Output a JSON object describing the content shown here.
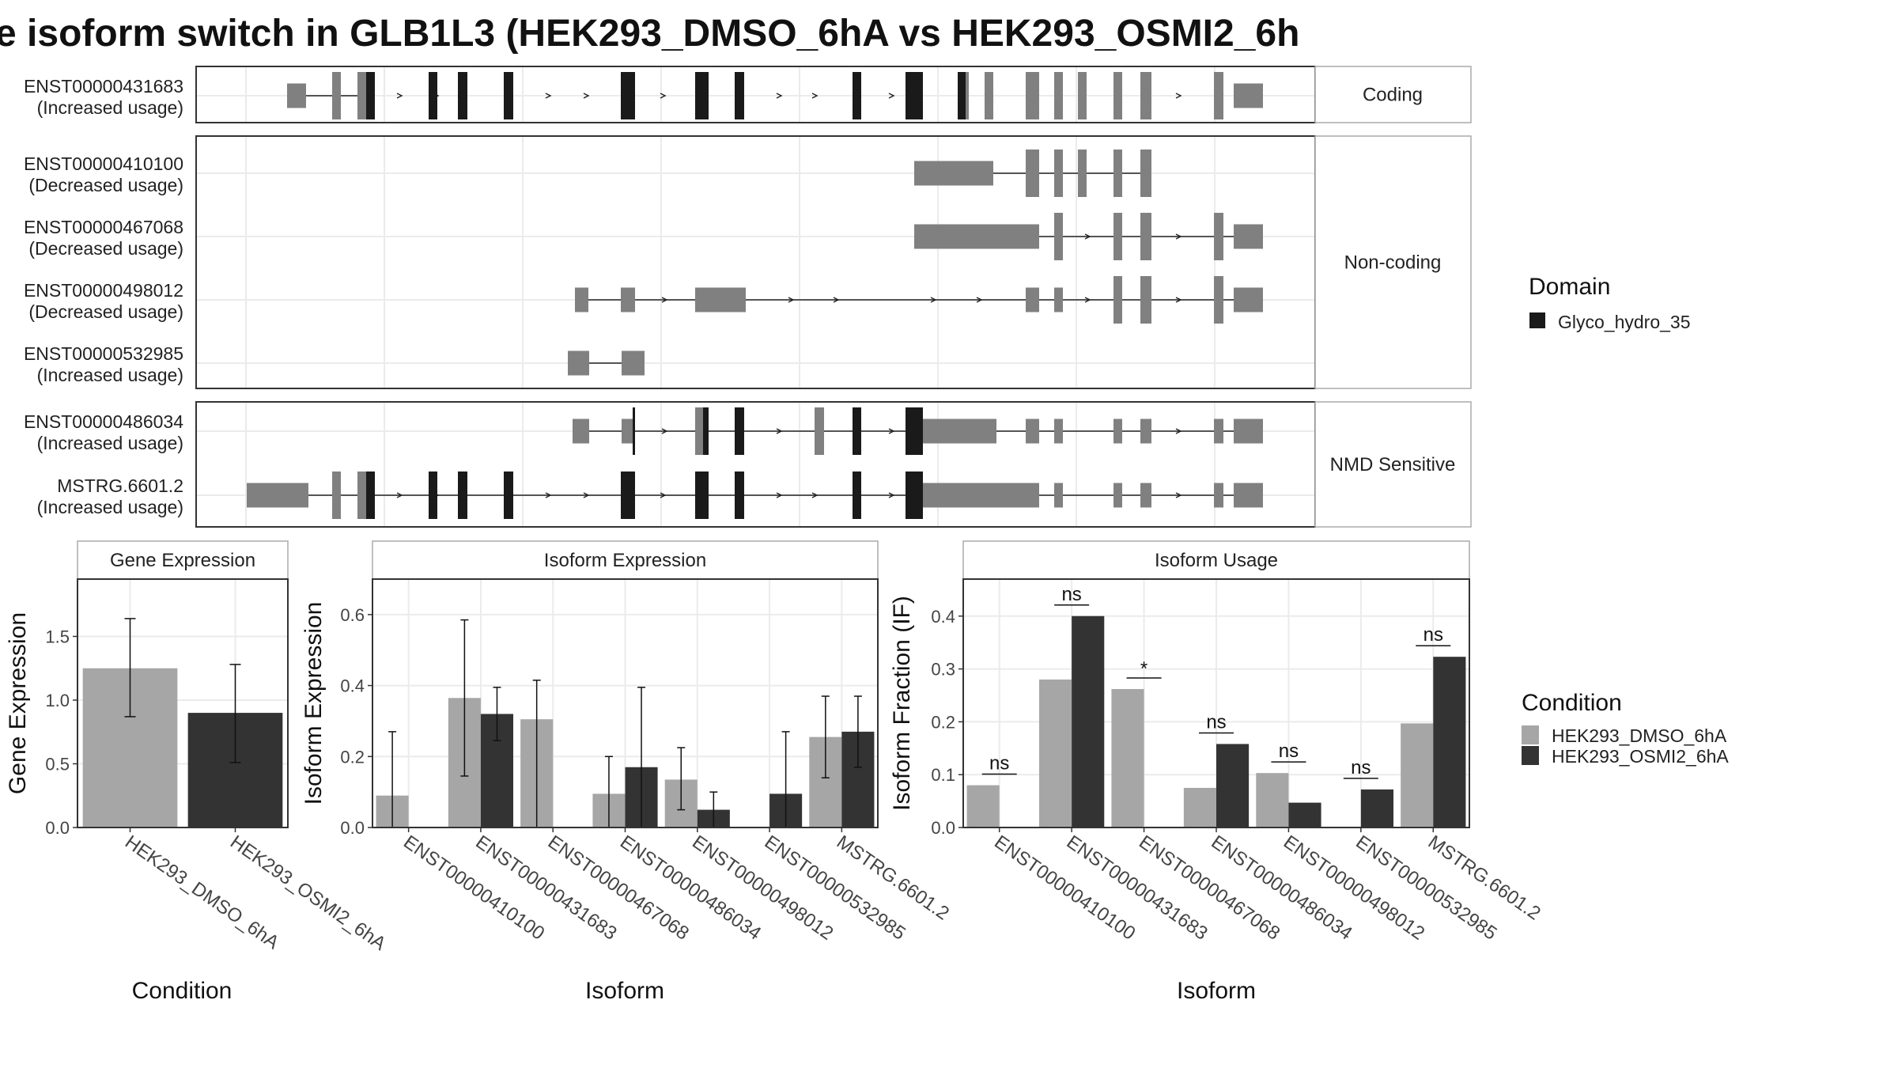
{
  "title": "e isoform switch in GLB1L3 (HEK293_DMSO_6hA vs HEK293_OSMI2_6h",
  "colors": {
    "dmso": "#a6a6a6",
    "osmi2": "#333333",
    "exon": "#808080",
    "domain": "#1a1a1a",
    "grid": "#ebebeb",
    "panel_border": "#333333",
    "strip_border": "#aaaaaa"
  },
  "legends": {
    "domain": {
      "title": "Domain",
      "items": [
        {
          "label": "Glyco_hydro_35",
          "color": "#1a1a1a"
        }
      ]
    },
    "condition": {
      "title": "Condition",
      "items": [
        {
          "label": "HEK293_DMSO_6hA",
          "color": "#a6a6a6"
        },
        {
          "label": "HEK293_OSMI2_6hA",
          "color": "#333333"
        }
      ]
    }
  },
  "chart_data": [
    {
      "type": "gene-structure",
      "groups": [
        {
          "label": "Coding",
          "isoforms": [
            {
              "id": "ENST00000431683",
              "usage": "(Increased usage)"
            }
          ]
        },
        {
          "label": "Non-coding",
          "isoforms": [
            {
              "id": "ENST00000410100",
              "usage": "(Decreased usage)"
            },
            {
              "id": "ENST00000467068",
              "usage": "(Decreased usage)"
            },
            {
              "id": "ENST00000498012",
              "usage": "(Decreased usage)"
            },
            {
              "id": "ENST00000532985",
              "usage": "(Increased usage)"
            }
          ]
        },
        {
          "label": "NMD Sensitive",
          "isoforms": [
            {
              "id": "ENST00000486034",
              "usage": "(Increased usage)"
            },
            {
              "id": "MSTRG.6601.2",
              "usage": "(Increased usage)"
            }
          ]
        }
      ]
    },
    {
      "type": "bar",
      "title": "Gene Expression",
      "xlabel": "Condition",
      "ylabel": "Gene Expression",
      "ylim": [
        0,
        1.95
      ],
      "yticks": [
        "0.0",
        "0.5",
        "1.0",
        "1.5"
      ],
      "categories": [
        "HEK293_DMSO_6hA",
        "HEK293_OSMI2_6hA"
      ],
      "values": [
        1.25,
        0.9
      ],
      "err_low": [
        0.87,
        0.51
      ],
      "err_high": [
        1.64,
        1.28
      ]
    },
    {
      "type": "bar",
      "title": "Isoform Expression",
      "xlabel": "Isoform",
      "ylabel": "Isoform Expression",
      "ylim": [
        0,
        0.7
      ],
      "yticks": [
        "0.0",
        "0.2",
        "0.4",
        "0.6"
      ],
      "categories": [
        "ENST00000410100",
        "ENST00000431683",
        "ENST00000467068",
        "ENST00000486034",
        "ENST00000498012",
        "ENST00000532985",
        "MSTRG.6601.2"
      ],
      "series": [
        {
          "name": "HEK293_DMSO_6hA",
          "values": [
            0.09,
            0.365,
            0.305,
            0.095,
            0.135,
            0.0,
            0.255
          ],
          "err_low": [
            0.0,
            0.145,
            0.0,
            0.0,
            0.05,
            0.0,
            0.14
          ],
          "err_high": [
            0.27,
            0.585,
            0.415,
            0.2,
            0.225,
            0.0,
            0.37
          ]
        },
        {
          "name": "HEK293_OSMI2_6hA",
          "values": [
            0.0,
            0.32,
            0.0,
            0.17,
            0.05,
            0.095,
            0.27
          ],
          "err_low": [
            0.0,
            0.245,
            0.0,
            0.0,
            0.0,
            0.0,
            0.17
          ],
          "err_high": [
            0.0,
            0.395,
            0.0,
            0.395,
            0.1,
            0.27,
            0.37
          ]
        }
      ]
    },
    {
      "type": "bar",
      "title": "Isoform Usage",
      "xlabel": "Isoform",
      "ylabel": "Isoform Fraction (IF)",
      "ylim": [
        0,
        0.47
      ],
      "yticks": [
        "0.0",
        "0.1",
        "0.2",
        "0.3",
        "0.4"
      ],
      "categories": [
        "ENST00000410100",
        "ENST00000431683",
        "ENST00000467068",
        "ENST00000486034",
        "ENST00000498012",
        "ENST00000532985",
        "MSTRG.6601.2"
      ],
      "series": [
        {
          "name": "HEK293_DMSO_6hA",
          "values": [
            0.08,
            0.28,
            0.262,
            0.075,
            0.103,
            0.0,
            0.197
          ]
        },
        {
          "name": "HEK293_OSMI2_6hA",
          "values": [
            0.0,
            0.4,
            0.0,
            0.158,
            0.047,
            0.072,
            0.323
          ]
        }
      ],
      "significance": [
        "ns",
        "ns",
        "*",
        "ns",
        "ns",
        "ns",
        "ns"
      ]
    }
  ]
}
